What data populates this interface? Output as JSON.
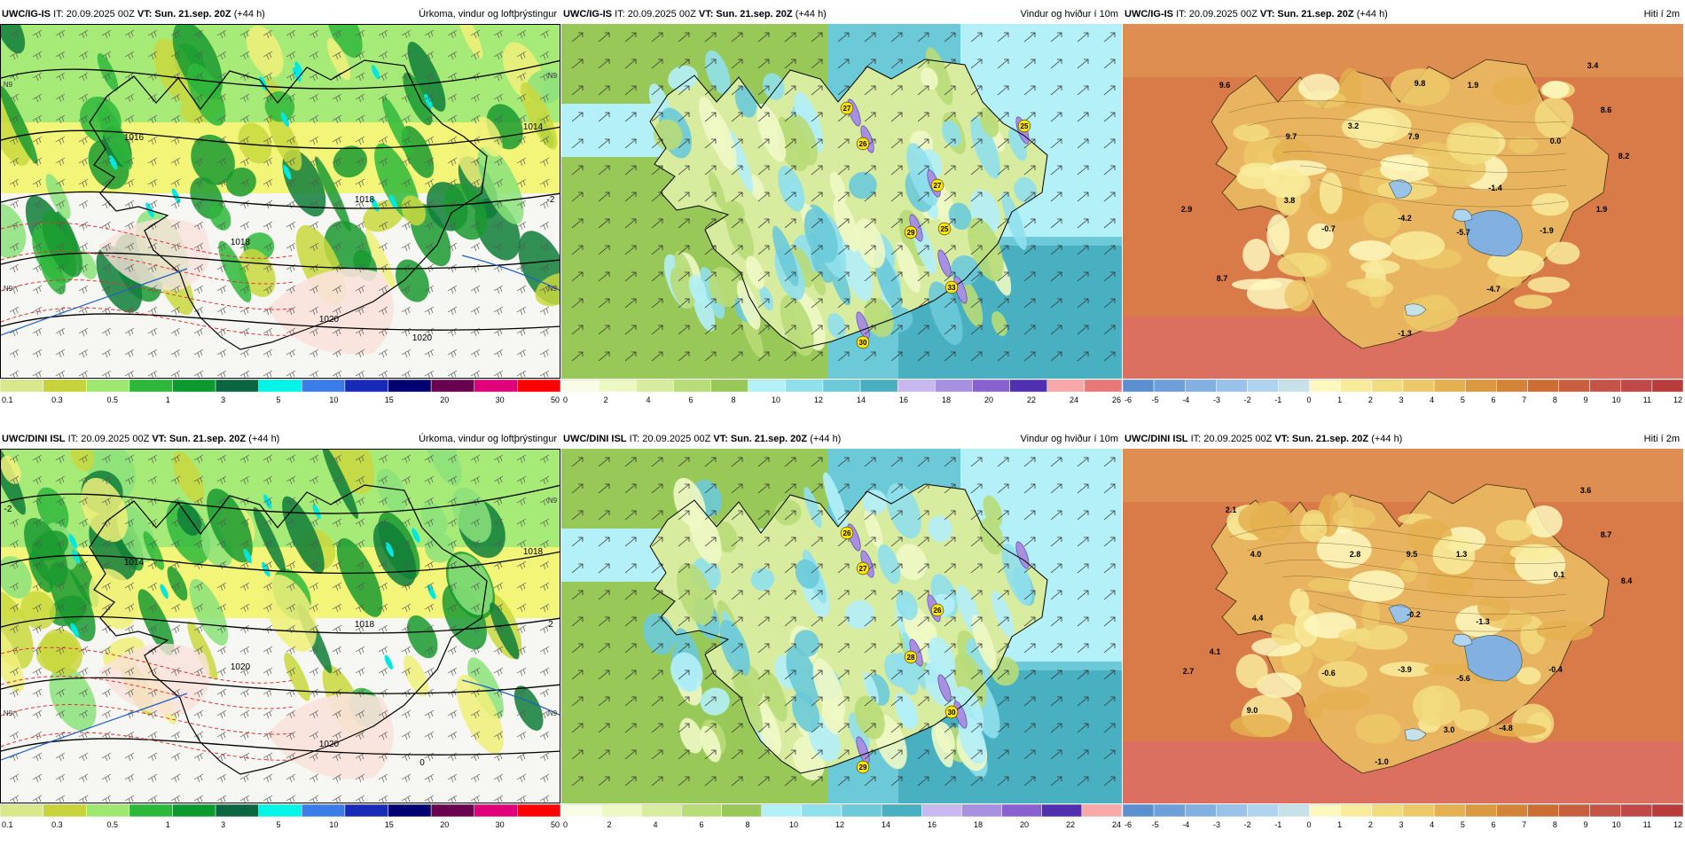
{
  "panels": [
    {
      "model": "UWC/IG-IS",
      "it": "IT: 20.09.2025 00Z",
      "vt_label": "VT:",
      "vt": "Sun. 21.sep. 20Z",
      "lead": "(+44 h)",
      "title": "Úrkoma, vindur og loftþrýstingur"
    },
    {
      "model": "UWC/IG-IS",
      "it": "IT: 20.09.2025 00Z",
      "vt_label": "VT:",
      "vt": "Sun. 21.sep. 20Z",
      "lead": "(+44 h)",
      "title": "Vindur og hviður í 10m"
    },
    {
      "model": "UWC/IG-IS",
      "it": "IT: 20.09.2025 00Z",
      "vt_label": "VT:",
      "vt": "Sun. 21.sep. 20Z",
      "lead": "(+44 h)",
      "title": "Hiti í 2m"
    },
    {
      "model": "UWC/DINI ISL",
      "it": "IT: 20.09.2025 00Z",
      "vt_label": "VT:",
      "vt": "Sun. 21.sep. 20Z",
      "lead": "(+44 h)",
      "title": "Úrkoma, vindur og loftþrýstingur"
    },
    {
      "model": "UWC/DINI ISL",
      "it": "IT: 20.09.2025 00Z",
      "vt_label": "VT:",
      "vt": "Sun. 21.sep. 20Z",
      "lead": "(+44 h)",
      "title": "Vindur og hviður í 10m"
    },
    {
      "model": "UWC/DINI ISL",
      "it": "IT: 20.09.2025 00Z",
      "vt_label": "VT:",
      "vt": "Sun. 21.sep. 20Z",
      "lead": "(+44 h)",
      "title": "Hiti í 2m"
    }
  ],
  "colorbars": {
    "precip": {
      "colors": [
        "#d9e88a",
        "#c8d23a",
        "#9ee870",
        "#2db83a",
        "#0b9a2e",
        "#0a6640",
        "#00f5e8",
        "#3a7de8",
        "#1a2ab8",
        "#000070",
        "#6a0050",
        "#e0007a",
        "#ff0000"
      ],
      "labels": [
        "0.1",
        "0.3",
        "0.5",
        "1",
        "3",
        "5",
        "10",
        "15",
        "20",
        "30",
        "50"
      ]
    },
    "wind_top": {
      "colors": [
        "#fafde6",
        "#eef8c4",
        "#d8eca0",
        "#b8dc78",
        "#98c858",
        "#b4f0f8",
        "#90e0ec",
        "#6ccad8",
        "#48b0c0",
        "#c8b8f0",
        "#a890e0",
        "#8860d0",
        "#5030b0",
        "#f8a8a8",
        "#e87878"
      ],
      "labels": [
        "0",
        "2",
        "4",
        "6",
        "8",
        "10",
        "12",
        "14",
        "16",
        "18",
        "20",
        "22",
        "24",
        "26"
      ]
    },
    "wind_bottom": {
      "colors": [
        "#fafde6",
        "#eef8c4",
        "#d8eca0",
        "#b8dc78",
        "#98c858",
        "#b4f0f8",
        "#90e0ec",
        "#6ccad8",
        "#48b0c0",
        "#c8b8f0",
        "#a890e0",
        "#8860d0",
        "#5030b0",
        "#f8a8a8"
      ],
      "labels": [
        "0",
        "2",
        "4",
        "6",
        "8",
        "10",
        "12",
        "14",
        "16",
        "18",
        "20",
        "22",
        "24"
      ]
    },
    "temp": {
      "colors": [
        "#5b8fd0",
        "#6d9fd8",
        "#82b0e0",
        "#98c2e8",
        "#b0d4f0",
        "#c8e0e8",
        "#fdf8c0",
        "#f8ec9c",
        "#f2dc80",
        "#ecc868",
        "#e4b050",
        "#dc9a40",
        "#d48438",
        "#cc6e34",
        "#c86040",
        "#c45448",
        "#c04848",
        "#b83c3c"
      ],
      "labels": [
        "-6",
        "-5",
        "-4",
        "-3",
        "-2",
        "-1",
        "0",
        "1",
        "2",
        "3",
        "4",
        "5",
        "6",
        "7",
        "8",
        "9",
        "10",
        "11",
        "12"
      ]
    }
  },
  "map_labels": {
    "p0": [
      "1016",
      "1014",
      "1018",
      "1018",
      "1020",
      "1020",
      "-2",
      "N9",
      "N9",
      "N9",
      "N9"
    ],
    "p3": [
      "1014",
      "1018",
      "1018",
      "1020",
      "1020",
      "0",
      "2",
      "-2",
      "N9",
      "N9",
      "N9"
    ],
    "p1": [
      "27",
      "26",
      "25",
      "27",
      "29",
      "25",
      "33",
      "30"
    ],
    "p4": [
      "26",
      "27",
      "26",
      "28",
      "30",
      "29"
    ],
    "p2": [
      "9.6",
      "9.8",
      "1.9",
      "3.4",
      "8.6",
      "9.7",
      "3.2",
      "7.9",
      "0.0",
      "8.2",
      "3.8",
      "-1.4",
      "2.9",
      "-4.2",
      "-0.7",
      "-5.7",
      "-1.9",
      "1.9",
      "-4.7",
      "8.7",
      "-1.3"
    ],
    "p5": [
      "2.1",
      "3.6",
      "8.7",
      "4.0",
      "2.8",
      "9.5",
      "1.3",
      "0.1",
      "8.4",
      "4.4",
      "-0.2",
      "-1.3",
      "4.1",
      "2.7",
      "-0.6",
      "-3.9",
      "-5.6",
      "-0.4",
      "9.0",
      "3.0",
      "-4.8",
      "-1.0"
    ]
  }
}
